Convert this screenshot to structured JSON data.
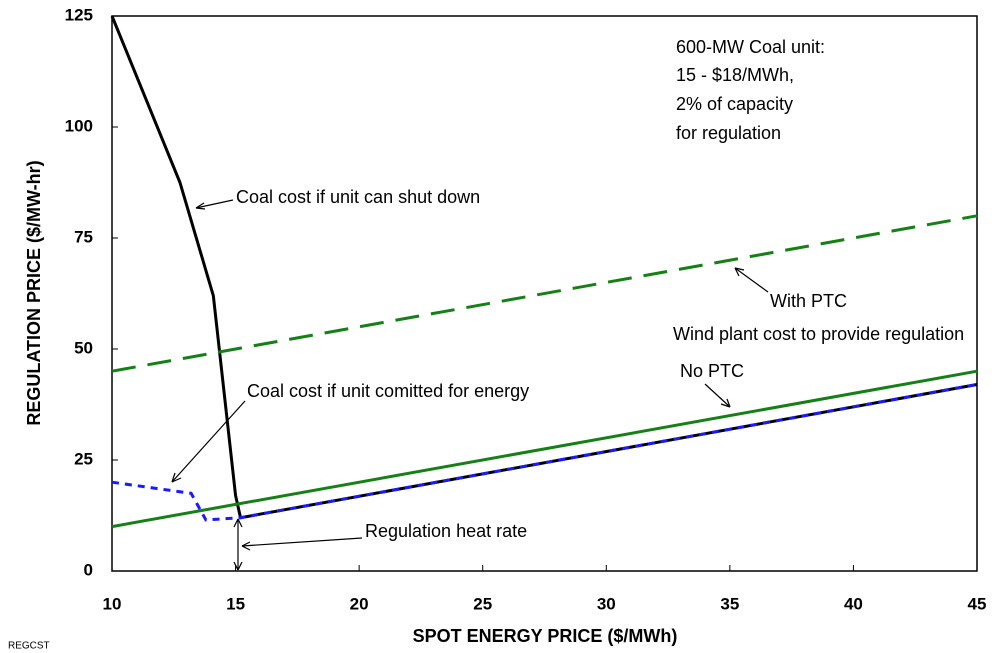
{
  "chart_data": {
    "type": "line",
    "xlabel": "SPOT ENERGY PRICE ($/MWh)",
    "ylabel": "REGULATION PRICE ($/MW-hr)",
    "xlim": [
      10,
      45
    ],
    "ylim": [
      0,
      125
    ],
    "xticks": [
      10,
      15,
      20,
      25,
      30,
      35,
      40,
      45
    ],
    "yticks": [
      0,
      25,
      50,
      75,
      100,
      125
    ],
    "series": [
      {
        "name": "Coal cost if unit can shut down",
        "color": "#000000",
        "style": "solid",
        "x": [
          10,
          12.75,
          14.1,
          15,
          15.2,
          45
        ],
        "values": [
          125,
          87.5,
          62,
          17,
          12,
          42
        ]
      },
      {
        "name": "Coal cost if unit comitted for energy",
        "color": "#1a1aff",
        "style": "dotted",
        "x": [
          10,
          13.2,
          13.8,
          15.2,
          45
        ],
        "values": [
          20,
          17.5,
          11.5,
          12,
          42
        ]
      },
      {
        "name": "No PTC",
        "color": "#158015",
        "style": "solid",
        "x": [
          10,
          45
        ],
        "values": [
          10,
          45
        ]
      },
      {
        "name": "With PTC",
        "color": "#158015",
        "style": "dashed",
        "x": [
          10,
          45
        ],
        "values": [
          45,
          80
        ]
      }
    ],
    "annotations": [
      "600-MW Coal unit:",
      "15 - $18/MWh,",
      "2% of capacity",
      "for regulation",
      "Wind plant cost to provide regulation",
      "Regulation heat rate"
    ],
    "footnote": "REGCST"
  }
}
